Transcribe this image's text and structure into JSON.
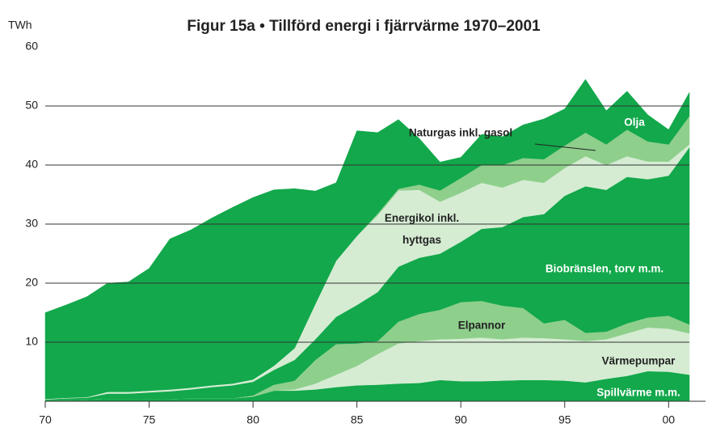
{
  "chart_data": {
    "type": "stacked_area",
    "title": "Figur 15a • Tillförd energi i fjärrvärme 1970–2001",
    "y_label": "TWh",
    "x": [
      1970,
      1971,
      1972,
      1973,
      1974,
      1975,
      1976,
      1977,
      1978,
      1979,
      1980,
      1981,
      1982,
      1983,
      1984,
      1985,
      1986,
      1987,
      1988,
      1989,
      1990,
      1991,
      1992,
      1993,
      1994,
      1995,
      1996,
      1997,
      1998,
      1999,
      2000,
      2001
    ],
    "xlim": [
      1970,
      2001
    ],
    "xticks": [
      {
        "value": 1970,
        "label": "70"
      },
      {
        "value": 1975,
        "label": "75"
      },
      {
        "value": 1980,
        "label": "80"
      },
      {
        "value": 1985,
        "label": "85"
      },
      {
        "value": 1990,
        "label": "90"
      },
      {
        "value": 1995,
        "label": "95"
      },
      {
        "value": 2000,
        "label": "00"
      }
    ],
    "ylim": [
      0,
      60
    ],
    "yticks": [
      10,
      20,
      30,
      40,
      50,
      60
    ],
    "grid": true,
    "series": [
      {
        "name": "Spillvärme m.m.",
        "color": "#12a84b",
        "values": [
          0.2,
          0.2,
          0.3,
          0.4,
          0.4,
          0.4,
          0.4,
          0.5,
          0.5,
          0.5,
          0.8,
          1.8,
          1.8,
          2.0,
          2.4,
          2.7,
          2.8,
          3.0,
          3.1,
          3.6,
          3.4,
          3.4,
          3.5,
          3.6,
          3.6,
          3.5,
          3.2,
          3.8,
          4.3,
          5.1,
          5.0,
          4.5
        ]
      },
      {
        "name": "Värmepumpar",
        "color": "#d5ecd3",
        "values": [
          0,
          0,
          0,
          0,
          0,
          0,
          0,
          0,
          0,
          0,
          0,
          0,
          0.2,
          1.0,
          2.1,
          3.3,
          5.2,
          6.8,
          7.1,
          6.9,
          7.2,
          7.4,
          7.0,
          7.2,
          7.1,
          7.0,
          7.0,
          6.7,
          7.2,
          7.4,
          7.3,
          7.0
        ]
      },
      {
        "name": "Elpannor",
        "color": "#8ecf8c",
        "values": [
          0,
          0,
          0,
          0,
          0,
          0,
          0,
          0,
          0,
          0,
          0.2,
          1.0,
          1.5,
          4.0,
          5.2,
          3.8,
          2.2,
          3.7,
          4.6,
          5.0,
          6.2,
          6.2,
          5.7,
          5.0,
          2.5,
          3.3,
          1.4,
          1.3,
          1.7,
          1.7,
          2.2,
          1.5
        ]
      },
      {
        "name": "Biobränslen, torv m.m.",
        "color": "#12a84b",
        "values": [
          0.1,
          0.3,
          0.3,
          0.9,
          0.9,
          1.1,
          1.3,
          1.5,
          1.9,
          2.2,
          2.3,
          2.5,
          3.5,
          3.5,
          4.6,
          6.5,
          8.3,
          9.3,
          9.5,
          9.5,
          10.2,
          12.2,
          13.3,
          15.4,
          18.5,
          21.0,
          24.8,
          24.0,
          24.8,
          23.4,
          23.7,
          30.0
        ]
      },
      {
        "name": "Energikol inkl. hyttgas",
        "color": "#d5ecd3",
        "values": [
          0.1,
          0.1,
          0.1,
          0.3,
          0.3,
          0.3,
          0.3,
          0.3,
          0.3,
          0.3,
          0.4,
          0.7,
          2.0,
          6.0,
          9.5,
          11.7,
          13.0,
          12.9,
          11.5,
          8.8,
          8.3,
          7.8,
          6.7,
          6.3,
          5.3,
          4.7,
          5.1,
          4.2,
          3.5,
          3.0,
          2.4,
          0.5
        ]
      },
      {
        "name": "Naturgas inkl. gasol",
        "color": "#8ecf8c",
        "values": [
          0,
          0,
          0,
          0,
          0,
          0,
          0,
          0,
          0,
          0,
          0,
          0,
          0,
          0,
          0,
          0,
          0.3,
          0.3,
          0.9,
          1.9,
          2.5,
          3.0,
          3.8,
          3.7,
          4.0,
          3.8,
          4.0,
          3.5,
          4.5,
          3.4,
          2.9,
          4.8
        ]
      },
      {
        "name": "Olja",
        "color": "#12a84b",
        "values": [
          14.6,
          15.7,
          17.0,
          18.4,
          18.6,
          20.7,
          25.5,
          26.7,
          28.3,
          29.8,
          30.8,
          29.8,
          27.0,
          19.1,
          13.2,
          17.8,
          13.7,
          11.7,
          7.8,
          4.8,
          3.5,
          5.2,
          4.8,
          5.6,
          6.8,
          6.2,
          9.0,
          5.7,
          6.5,
          4.5,
          2.5,
          4.0
        ]
      }
    ]
  }
}
